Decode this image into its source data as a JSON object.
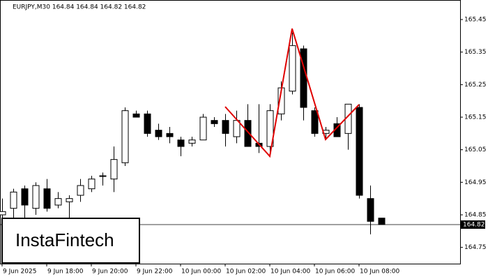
{
  "chart_data": {
    "type": "candlestick",
    "title": "EURJPY,M30  164.84 164.84 164.82 164.82",
    "logo": "InstaFintech",
    "categories": [
      "9 Jun 2025",
      null,
      null,
      null,
      "9 Jun 18:00",
      null,
      null,
      null,
      "9 Jun 20:00",
      null,
      null,
      null,
      "9 Jun 22:00",
      null,
      null,
      null,
      "10 Jun 00:00",
      null,
      null,
      null,
      "10 Jun 02:00",
      null,
      null,
      null,
      "10 Jun 04:00",
      null,
      null,
      null,
      "10 Jun 06:00",
      null,
      null,
      null,
      "10 Jun 08:00",
      null,
      null
    ],
    "open": [
      164.85,
      164.87,
      164.93,
      164.87,
      164.93,
      164.88,
      164.89,
      164.91,
      164.93,
      164.97,
      164.96,
      165.01,
      165.16,
      165.16,
      165.11,
      165.1,
      165.08,
      165.07,
      165.08,
      165.14,
      165.14,
      165.09,
      165.14,
      165.07,
      165.06,
      165.16,
      165.23,
      165.36,
      165.17,
      165.1,
      165.13,
      165.1,
      165.18,
      164.9,
      164.84
    ],
    "high": [
      164.9,
      164.93,
      164.94,
      164.95,
      164.96,
      164.92,
      164.91,
      164.96,
      164.97,
      164.98,
      165.06,
      165.18,
      165.17,
      165.17,
      165.13,
      165.12,
      165.09,
      165.09,
      165.16,
      165.15,
      165.16,
      165.17,
      165.19,
      165.19,
      165.19,
      165.26,
      165.41,
      165.37,
      165.18,
      165.12,
      165.15,
      165.19,
      165.19,
      164.94,
      164.84
    ],
    "low": [
      164.8,
      164.81,
      164.84,
      164.85,
      164.86,
      164.87,
      164.84,
      164.89,
      164.92,
      164.94,
      164.92,
      165.0,
      165.15,
      165.09,
      165.08,
      165.07,
      165.03,
      165.06,
      165.08,
      165.12,
      165.06,
      165.07,
      165.06,
      165.04,
      165.04,
      165.14,
      165.22,
      165.14,
      165.09,
      165.08,
      165.09,
      165.05,
      164.9,
      164.79,
      164.82
    ],
    "close": [
      164.86,
      164.92,
      164.88,
      164.94,
      164.87,
      164.9,
      164.9,
      164.94,
      164.96,
      164.97,
      165.02,
      165.17,
      165.15,
      165.1,
      165.09,
      165.09,
      165.06,
      165.08,
      165.15,
      165.13,
      165.1,
      165.14,
      165.06,
      165.06,
      165.17,
      165.24,
      165.37,
      165.18,
      165.1,
      165.11,
      165.09,
      165.19,
      164.91,
      164.83,
      164.82
    ],
    "up_color": "#ffffff",
    "down_color": "#000000",
    "last_price": 164.82,
    "ylim": [
      164.7,
      165.51
    ],
    "yticks": [
      164.75,
      164.85,
      164.95,
      165.05,
      165.15,
      165.25,
      165.35,
      165.45
    ],
    "grid": false
  }
}
